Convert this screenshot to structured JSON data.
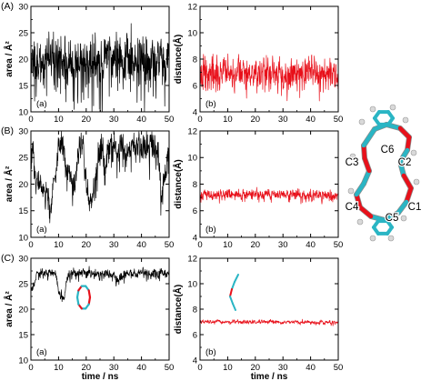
{
  "chart_data": [
    {
      "type": "line",
      "row_label": "(A)",
      "panel_label": "(a)",
      "xlabel": "",
      "ylabel": "area / Å²",
      "xlim": [
        0,
        50
      ],
      "ylim": [
        10,
        30
      ],
      "xticks": [
        0,
        10,
        20,
        30,
        40,
        50
      ],
      "yticks": [
        10,
        15,
        20,
        25,
        30
      ],
      "color": "#000000",
      "series": [
        {
          "profile": [
            [
              0,
              20
            ],
            [
              50,
              20
            ]
          ],
          "noise": 2.1,
          "spikes": 0.2,
          "n": 600,
          "seed": 11,
          "x": [
            0,
            10,
            20,
            30,
            40,
            50
          ],
          "y": [
            20,
            20,
            20,
            20,
            20,
            20
          ]
        }
      ]
    },
    {
      "type": "line",
      "row_label": "",
      "panel_label": "(b)",
      "xlabel": "",
      "ylabel": "distance(Å)",
      "xlim": [
        0,
        50
      ],
      "ylim": [
        4,
        12
      ],
      "xticks": [
        0,
        10,
        20,
        30,
        40,
        50
      ],
      "yticks": [
        4,
        6,
        8,
        10,
        12
      ],
      "color": "#e8101a",
      "series": [
        {
          "profile": [
            [
              0,
              7
            ],
            [
              50,
              7
            ]
          ],
          "noise": 0.45,
          "spikes": 0.25,
          "n": 600,
          "seed": 23,
          "x": [
            0,
            10,
            20,
            30,
            40,
            50
          ],
          "y": [
            7,
            7,
            7,
            7,
            7,
            7
          ]
        }
      ]
    },
    {
      "type": "line",
      "row_label": "(B)",
      "panel_label": "(a)",
      "xlabel": "",
      "ylabel": "area / Å²",
      "xlim": [
        0,
        50
      ],
      "ylim": [
        10,
        30
      ],
      "xticks": [
        0,
        10,
        20,
        30,
        40,
        50
      ],
      "yticks": [
        10,
        15,
        20,
        25,
        30
      ],
      "color": "#000000",
      "series": [
        {
          "profile": [
            [
              0,
              27
            ],
            [
              1,
              27
            ],
            [
              1.5,
              21
            ],
            [
              6,
              18
            ],
            [
              7,
              15
            ],
            [
              8,
              21
            ],
            [
              9,
              23
            ],
            [
              10,
              27
            ],
            [
              12,
              27
            ],
            [
              13,
              22
            ],
            [
              16,
              20
            ],
            [
              17,
              27
            ],
            [
              19,
              27
            ],
            [
              20,
              20
            ],
            [
              22,
              17
            ],
            [
              24,
              23
            ],
            [
              25,
              27
            ],
            [
              26,
              27
            ],
            [
              27,
              22
            ],
            [
              28,
              27
            ],
            [
              46,
              27
            ],
            [
              47,
              18
            ],
            [
              49,
              22
            ],
            [
              50,
              27
            ]
          ],
          "noise": 1.2,
          "spikes": 0.15,
          "n": 600,
          "seed": 37,
          "x": [
            0,
            5,
            10,
            15,
            20,
            25,
            30,
            35,
            40,
            45,
            50
          ],
          "y": [
            27,
            19,
            27,
            21,
            20,
            27,
            27,
            27,
            27,
            27,
            27
          ]
        }
      ]
    },
    {
      "type": "line",
      "row_label": "",
      "panel_label": "(b)",
      "xlabel": "",
      "ylabel": "distance(Å)",
      "xlim": [
        0,
        50
      ],
      "ylim": [
        4,
        12
      ],
      "xticks": [
        0,
        10,
        20,
        30,
        40,
        50
      ],
      "yticks": [
        4,
        6,
        8,
        10,
        12
      ],
      "color": "#e8101a",
      "series": [
        {
          "profile": [
            [
              0,
              7.2
            ],
            [
              50,
              7.2
            ]
          ],
          "noise": 0.18,
          "spikes": 0.08,
          "n": 600,
          "seed": 41,
          "x": [
            0,
            10,
            20,
            30,
            40,
            50
          ],
          "y": [
            7.2,
            7.2,
            7.2,
            7.2,
            7.2,
            7.2
          ]
        }
      ]
    },
    {
      "type": "line",
      "row_label": "(C)",
      "panel_label": "(a)",
      "xlabel": "time / ns",
      "ylabel": "area / Å²",
      "xlim": [
        0,
        50
      ],
      "ylim": [
        10,
        30
      ],
      "xticks": [
        0,
        10,
        20,
        30,
        40,
        50
      ],
      "yticks": [
        10,
        15,
        20,
        25,
        30
      ],
      "color": "#000000",
      "series": [
        {
          "profile": [
            [
              0,
              24
            ],
            [
              1,
              24.5
            ],
            [
              2,
              27
            ],
            [
              9,
              27
            ],
            [
              10,
              24
            ],
            [
              12,
              22
            ],
            [
              13,
              26
            ],
            [
              15,
              27
            ],
            [
              30,
              27
            ],
            [
              31,
              25.5
            ],
            [
              33,
              26
            ],
            [
              34,
              27
            ],
            [
              50,
              27
            ]
          ],
          "noise": 0.45,
          "spikes": 0.05,
          "n": 600,
          "seed": 53,
          "x": [
            0,
            5,
            10,
            15,
            20,
            25,
            30,
            35,
            40,
            45,
            50
          ],
          "y": [
            24,
            27,
            24,
            27,
            27,
            27,
            27,
            27,
            27,
            27,
            27
          ]
        }
      ]
    },
    {
      "type": "line",
      "row_label": "",
      "panel_label": "(b)",
      "xlabel": "time / ns",
      "ylabel": "distance(Å)",
      "xlim": [
        0,
        50
      ],
      "ylim": [
        4,
        12
      ],
      "xticks": [
        0,
        10,
        20,
        30,
        40,
        50
      ],
      "yticks": [
        4,
        6,
        8,
        10,
        12
      ],
      "color": "#e8101a",
      "series": [
        {
          "profile": [
            [
              0,
              7
            ],
            [
              50,
              6.95
            ]
          ],
          "noise": 0.07,
          "spikes": 0,
          "n": 600,
          "seed": 67,
          "x": [
            0,
            10,
            20,
            30,
            40,
            50
          ],
          "y": [
            7,
            7,
            7,
            7,
            7,
            6.95
          ]
        }
      ]
    }
  ],
  "molecule": {
    "atom_labels": [
      "C6",
      "C2",
      "C3",
      "C4",
      "C5",
      "C1"
    ],
    "colors": {
      "carbon": "#2ab5c4",
      "oxygen": "#e8101a",
      "hydrogen": "#d9d9d9"
    }
  }
}
